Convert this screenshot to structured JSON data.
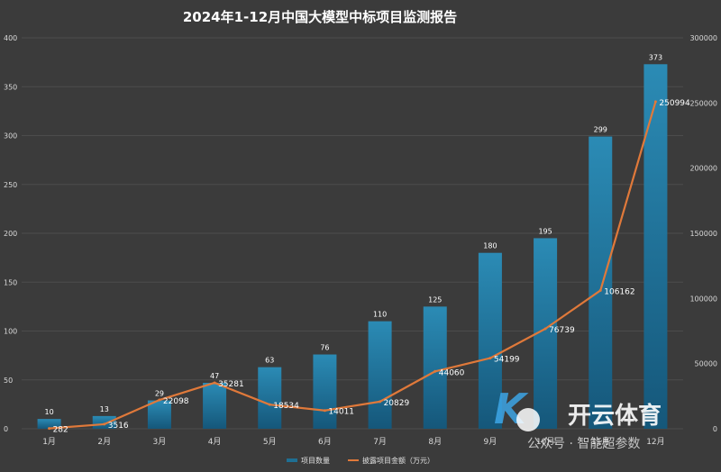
{
  "chart_data": {
    "type": "bar",
    "title": "2024年1-12月中国大模型中标项目监测报告",
    "categories": [
      "1月",
      "2月",
      "3月",
      "4月",
      "5月",
      "6月",
      "7月",
      "8月",
      "9月",
      "10月",
      "11月",
      "12月"
    ],
    "series": [
      {
        "name": "项目数量",
        "type": "bar",
        "axis": "left",
        "values": [
          10,
          13,
          29,
          47,
          63,
          76,
          110,
          125,
          180,
          195,
          299,
          373
        ]
      },
      {
        "name": "披露项目金额（万元）",
        "type": "line",
        "axis": "right",
        "values": [
          282,
          3516,
          22098,
          35281,
          18534,
          14011,
          20829,
          44060,
          54199,
          76739,
          106162,
          250994
        ]
      }
    ],
    "y_left": {
      "min": 0,
      "max": 400,
      "ticks": [
        0,
        50,
        100,
        150,
        200,
        250,
        300,
        350,
        400
      ]
    },
    "y_right": {
      "min": 0,
      "max": 300000,
      "ticks": [
        0,
        50000,
        100000,
        150000,
        200000,
        250000,
        300000
      ]
    },
    "grid": true,
    "legend_position": "bottom",
    "colors": {
      "bar": "#1f6f93",
      "bar_top": "#2d8fb8",
      "line": "#e0793a",
      "background": "#3b3b3b",
      "grid": "#4c4c4c"
    },
    "watermark": {
      "brand": "开云体育",
      "caption": "公众号 · 智能超参数"
    }
  }
}
